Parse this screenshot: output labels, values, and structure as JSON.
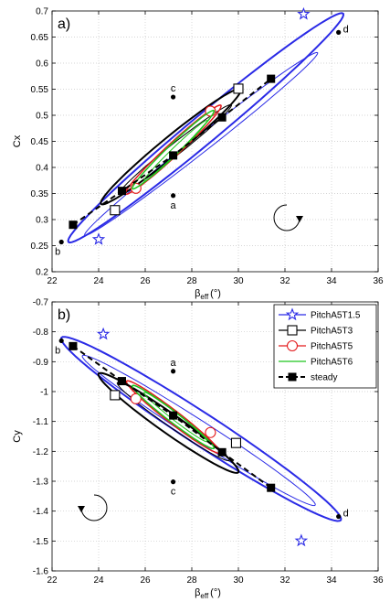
{
  "chart_data": [
    {
      "type": "line",
      "panel_label": "a)",
      "xlabel": "β",
      "xlabel_sub": "eff",
      "xlabel_unit": "(°)",
      "ylabel": "Cx",
      "xlim": [
        22,
        36
      ],
      "ylim": [
        0.2,
        0.7
      ],
      "xticks": [
        22,
        24,
        26,
        28,
        30,
        32,
        34,
        36
      ],
      "yticks": [
        0.2,
        0.25,
        0.3,
        0.35,
        0.4,
        0.45,
        0.5,
        0.55,
        0.6,
        0.65,
        0.7
      ],
      "xtick_labels": [
        "22",
        "24",
        "26",
        "28",
        "30",
        "32",
        "34",
        "36"
      ],
      "ytick_labels": [
        "0.2",
        "0.25",
        "0.3",
        "0.35",
        "0.4",
        "0.45",
        "0.5",
        "0.55",
        "0.6",
        "0.65",
        "0.7"
      ],
      "rotation_arrow": "clockwise",
      "series": [
        {
          "name": "PitchA5T1.5",
          "color": "#2a2ae6",
          "marker": "star",
          "loops": [
            {
              "cx": 28.6,
              "cy": 0.476,
              "major_x": 5.9,
              "major_y": 0.219,
              "minor": 1.2,
              "width": 2
            },
            {
              "cx": 28.4,
              "cy": 0.445,
              "major_x": 5.0,
              "major_y": 0.175,
              "minor": 0.7,
              "width": 1
            }
          ],
          "markers": [
            [
              32.8,
              0.694
            ],
            [
              24.0,
              0.262
            ]
          ]
        },
        {
          "name": "PitchA5T3",
          "color": "#000000",
          "marker": "square",
          "loops": [
            {
              "cx": 27.1,
              "cy": 0.44,
              "major_x": 3.0,
              "major_y": 0.11,
              "minor": 0.82,
              "width": 2
            },
            {
              "cx": 27.3,
              "cy": 0.435,
              "major_x": 2.4,
              "major_y": 0.085,
              "minor": 0.5,
              "width": 1
            }
          ],
          "markers": [
            [
              30.0,
              0.551
            ],
            [
              24.7,
              0.318
            ]
          ]
        },
        {
          "name": "PitchA5T5",
          "color": "#e31a1c",
          "marker": "circle",
          "loops": [
            {
              "cx": 27.2,
              "cy": 0.434,
              "major_x": 2.05,
              "major_y": 0.085,
              "minor": 0.55,
              "width": 1.5
            }
          ],
          "markers": [
            [
              28.8,
              0.508
            ],
            [
              25.6,
              0.36
            ]
          ]
        },
        {
          "name": "PitchA5T6",
          "color": "#1dc51d",
          "marker": "none",
          "loops": [
            {
              "cx": 27.2,
              "cy": 0.434,
              "major_x": 1.75,
              "major_y": 0.075,
              "minor": 0.45,
              "width": 1.5
            },
            {
              "cx": 27.3,
              "cy": 0.432,
              "major_x": 1.35,
              "major_y": 0.058,
              "minor": 0.3,
              "width": 1
            }
          ],
          "markers": []
        },
        {
          "name": "steady",
          "color": "#000000",
          "marker": "filled-square",
          "dashed": true,
          "x": [
            22.9,
            25.0,
            27.2,
            29.3,
            31.4
          ],
          "y": [
            0.29,
            0.355,
            0.423,
            0.496,
            0.57
          ]
        }
      ],
      "annotations": [
        {
          "text": "a",
          "x": 27.2,
          "y": 0.346,
          "dx": 0,
          "dy": 14
        },
        {
          "text": "b",
          "x": 22.4,
          "y": 0.257,
          "dx": -4,
          "dy": 14
        },
        {
          "text": "c",
          "x": 27.2,
          "y": 0.535,
          "dx": 0,
          "dy": -6
        },
        {
          "text": "d",
          "x": 34.3,
          "y": 0.659,
          "dx": 8,
          "dy": 0
        }
      ]
    },
    {
      "type": "line",
      "panel_label": "b)",
      "xlabel": "β",
      "xlabel_sub": "eff",
      "xlabel_unit": "(°)",
      "ylabel": "Cy",
      "xlim": [
        22,
        36
      ],
      "ylim": [
        -1.6,
        -0.7
      ],
      "xticks": [
        22,
        24,
        26,
        28,
        30,
        32,
        34,
        36
      ],
      "yticks": [
        -1.6,
        -1.5,
        -1.4,
        -1.3,
        -1.2,
        -1.1,
        -1.0,
        -0.9,
        -0.8,
        -0.7
      ],
      "xtick_labels": [
        "22",
        "24",
        "26",
        "28",
        "30",
        "32",
        "34",
        "36"
      ],
      "ytick_labels": [
        "-1.6",
        "-1.5",
        "-1.4",
        "-1.3",
        "-1.2",
        "-1.1",
        "-1",
        "-0.9",
        "-0.8",
        "-0.7"
      ],
      "rotation_arrow": "counterclockwise",
      "series": [
        {
          "name": "PitchA5T1.5",
          "color": "#2a2ae6",
          "marker": "star",
          "loops": [
            {
              "cx": 28.4,
              "cy": -1.125,
              "major_x": 6.0,
              "major_y": -0.305,
              "minor": 1.35,
              "width": 2
            },
            {
              "cx": 28.3,
              "cy": -1.13,
              "major_x": 5.0,
              "major_y": -0.25,
              "minor": 0.85,
              "width": 1
            }
          ],
          "markers": [
            [
              24.2,
              -0.808
            ],
            [
              32.7,
              -1.499
            ]
          ]
        },
        {
          "name": "PitchA5T3",
          "color": "#000000",
          "marker": "square",
          "loops": [
            {
              "cx": 27.0,
              "cy": -1.105,
              "major_x": 3.0,
              "major_y": -0.165,
              "minor": 0.85,
              "width": 2
            },
            {
              "cx": 27.2,
              "cy": -1.1,
              "major_x": 2.4,
              "major_y": -0.13,
              "minor": 0.55,
              "width": 1
            }
          ],
          "markers": [
            [
              24.7,
              -1.012
            ],
            [
              29.9,
              -1.172
            ]
          ]
        },
        {
          "name": "PitchA5T5",
          "color": "#e31a1c",
          "marker": "circle",
          "loops": [
            {
              "cx": 27.2,
              "cy": -1.085,
              "major_x": 2.0,
              "major_y": -0.12,
              "minor": 0.55,
              "width": 1.5
            }
          ],
          "markers": [
            [
              25.6,
              -1.024
            ],
            [
              28.8,
              -1.137
            ]
          ]
        },
        {
          "name": "PitchA5T6",
          "color": "#1dc51d",
          "marker": "none",
          "loops": [
            {
              "cx": 27.2,
              "cy": -1.085,
              "major_x": 1.75,
              "major_y": -0.105,
              "minor": 0.45,
              "width": 1.5
            },
            {
              "cx": 27.3,
              "cy": -1.085,
              "major_x": 1.35,
              "major_y": -0.082,
              "minor": 0.3,
              "width": 1
            }
          ],
          "markers": []
        },
        {
          "name": "steady",
          "color": "#000000",
          "marker": "filled-square",
          "dashed": true,
          "x": [
            22.9,
            25.0,
            27.2,
            29.3,
            31.4
          ],
          "y": [
            -0.848,
            -0.965,
            -1.08,
            -1.203,
            -1.322
          ]
        }
      ],
      "annotations": [
        {
          "text": "a",
          "x": 27.2,
          "y": -0.932,
          "dx": 0,
          "dy": -6
        },
        {
          "text": "b",
          "x": 22.4,
          "y": -0.83,
          "dx": -4,
          "dy": 14
        },
        {
          "text": "c",
          "x": 27.2,
          "y": -1.302,
          "dx": 0,
          "dy": 14
        },
        {
          "text": "d",
          "x": 34.3,
          "y": -1.418,
          "dx": 8,
          "dy": 0
        }
      ]
    }
  ],
  "legend": {
    "position": "top-right of panel b",
    "entries": [
      {
        "label": "PitchA5T1.5",
        "color": "#2a2ae6",
        "marker": "star",
        "dashed": false
      },
      {
        "label": "PitchA5T3",
        "color": "#000000",
        "marker": "square",
        "dashed": false
      },
      {
        "label": "PitchA5T5",
        "color": "#e31a1c",
        "marker": "circle",
        "dashed": false
      },
      {
        "label": "PitchA5T6",
        "color": "#1dc51d",
        "marker": "none",
        "dashed": false
      },
      {
        "label": "steady",
        "color": "#000000",
        "marker": "filled-square",
        "dashed": true
      }
    ]
  }
}
